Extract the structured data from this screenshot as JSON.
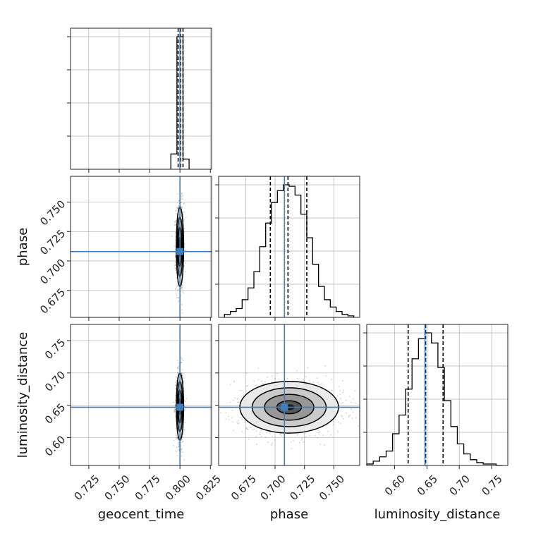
{
  "colors": {
    "truth": "#3f7ebc",
    "hist": "#000000",
    "grid": "#b0b0b0",
    "points": "#000000"
  },
  "chart_data": {
    "type": "corner",
    "grid": true,
    "parameters": [
      {
        "name": "geocent_time",
        "range": [
          0.71,
          0.826
        ],
        "ticks": [
          0.725,
          0.75,
          0.775,
          0.8,
          0.825
        ],
        "tick_labels": [
          "0.725",
          "0.750",
          "0.775",
          "0.800",
          "0.825"
        ],
        "truth": 0.8
      },
      {
        "name": "phase",
        "range": [
          0.652,
          0.772
        ],
        "ticks": [
          0.675,
          0.7,
          0.725,
          0.75
        ],
        "tick_labels": [
          "0.675",
          "0.700",
          "0.725",
          "0.750"
        ],
        "truth": 0.708
      },
      {
        "name": "luminosity_distance",
        "range": [
          0.557,
          0.775
        ],
        "ticks": [
          0.6,
          0.65,
          0.7,
          0.75
        ],
        "tick_labels": [
          "0.60",
          "0.65",
          "0.70",
          "0.75"
        ],
        "truth": 0.647
      }
    ],
    "histograms": [
      {
        "param": "geocent_time",
        "bin_edges": [
          0.7925,
          0.7975,
          0.8025,
          0.8075
        ],
        "counts": [
          6,
          52,
          4
        ],
        "quantiles": [
          0.7985,
          0.8005,
          0.8025
        ]
      },
      {
        "param": "phase",
        "bin_edges": [
          0.657,
          0.662,
          0.667,
          0.672,
          0.677,
          0.682,
          0.687,
          0.692,
          0.697,
          0.702,
          0.707,
          0.712,
          0.717,
          0.722,
          0.727,
          0.732,
          0.737,
          0.742,
          0.747,
          0.752,
          0.757,
          0.762,
          0.767
        ],
        "counts": [
          2,
          4,
          6,
          12,
          20,
          31,
          48,
          64,
          78,
          86,
          90,
          89,
          83,
          70,
          54,
          36,
          21,
          12,
          7,
          4,
          2,
          1
        ],
        "quantiles": [
          0.696,
          0.711,
          0.727
        ]
      },
      {
        "param": "luminosity_distance",
        "bin_edges": [
          0.557,
          0.567,
          0.577,
          0.587,
          0.597,
          0.607,
          0.617,
          0.627,
          0.637,
          0.647,
          0.657,
          0.667,
          0.677,
          0.687,
          0.697,
          0.707,
          0.717,
          0.727,
          0.737,
          0.747,
          0.757,
          0.767
        ],
        "counts": [
          1,
          3,
          6,
          10,
          22,
          35,
          53,
          74,
          88,
          92,
          85,
          68,
          45,
          27,
          15,
          8,
          4,
          2,
          1,
          1,
          0
        ],
        "quantiles": [
          0.621,
          0.648,
          0.675
        ]
      }
    ],
    "pairs": [
      {
        "x": "geocent_time",
        "y": "phase",
        "mean": [
          0.8,
          0.712
        ],
        "sd": [
          0.0015,
          0.017
        ],
        "contours": [
          0.5,
          1.0,
          1.5,
          2.0
        ]
      },
      {
        "x": "geocent_time",
        "y": "luminosity_distance",
        "mean": [
          0.8,
          0.648
        ],
        "sd": [
          0.0015,
          0.026
        ],
        "contours": [
          0.5,
          1.0,
          1.5,
          2.0
        ]
      },
      {
        "x": "phase",
        "y": "luminosity_distance",
        "mean": [
          0.712,
          0.647
        ],
        "sd": [
          0.021,
          0.02
        ],
        "contours": [
          0.5,
          1.0,
          1.5,
          2.0
        ]
      }
    ]
  }
}
